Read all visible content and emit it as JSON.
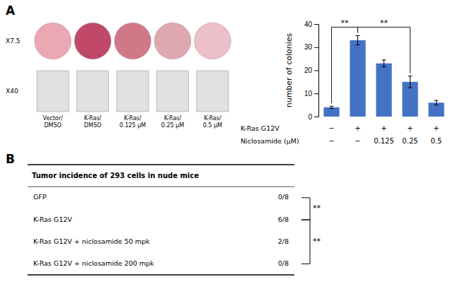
{
  "chart_data": [
    {
      "type": "image",
      "title": "A",
      "row_labels": [
        "X7.5",
        "X40"
      ],
      "categories": [
        "Vector/DMSO",
        "K-Ras/DMSO",
        "K-Ras/0.125 μM",
        "K-Ras/0.25 μM",
        "K-Ras/0.5 μM"
      ],
      "colors": [
        "#EAA8B2",
        "#C04868",
        "#D07888",
        "#DFA8B0",
        "#ECC0C8"
      ]
    },
    {
      "type": "bar",
      "ylabel": "number of colonies",
      "categories": [
        null,
        null,
        null,
        null,
        null
      ],
      "values": [
        4,
        33,
        23,
        15,
        6
      ],
      "errors": [
        0.5,
        2.0,
        1.5,
        2.5,
        1.0
      ],
      "color": "#4472C4",
      "ylim": [
        0,
        40
      ],
      "yticks": [
        0,
        10,
        20,
        30,
        40
      ],
      "condition_rows": [
        {
          "label": "K-Ras G12V",
          "values": [
            "−",
            "+",
            "+",
            "+",
            "+"
          ]
        },
        {
          "label": "Niclosamide (μM)",
          "values": [
            "−",
            "−",
            "0.125",
            "0.25",
            "0.5"
          ]
        }
      ],
      "significance": [
        {
          "from": 0,
          "to": 1,
          "label": "**"
        },
        {
          "from": 1,
          "to": 3,
          "label": "**"
        }
      ]
    },
    {
      "type": "table",
      "title": "B",
      "header": "Tumor incidence of 293 cells in nude mice",
      "rows": [
        [
          "GFP",
          "0/8"
        ],
        [
          "K-Ras G12V",
          "6/8"
        ],
        [
          "K-Ras G12V + niclosamide 50 mpk",
          "2/8"
        ],
        [
          "K-Ras G12V + niclosamide 200 mpk",
          "0/8"
        ]
      ],
      "significance": [
        {
          "from": 0,
          "to": 1,
          "label": "**"
        },
        {
          "from": 1,
          "to": 3,
          "label": "**"
        }
      ]
    }
  ]
}
